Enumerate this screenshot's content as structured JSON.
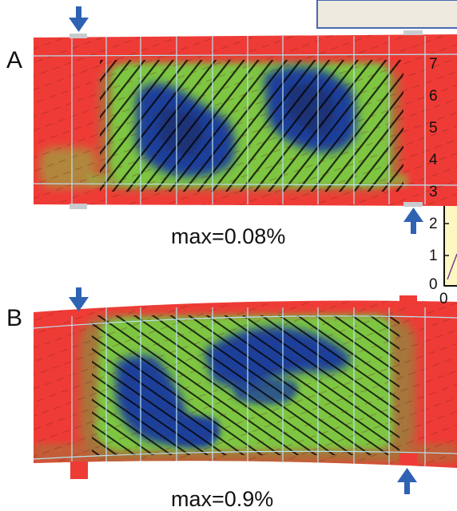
{
  "panels": [
    {
      "label": "A",
      "caption": "max=0.08%"
    },
    {
      "label": "B",
      "caption": "max=0.9%"
    }
  ],
  "inset_axis": {
    "y_ticks": [
      "0",
      "1",
      "2",
      "3",
      "4",
      "5",
      "6",
      "7"
    ],
    "x_tick": "0"
  },
  "colors": {
    "high_strain": "#ef3b36",
    "medium_strain": "#7ec642",
    "low_strain": "#1c3f9a",
    "transition": "#a5763a",
    "load_arrow": "#2f62b3",
    "mesh_line": "#b9e3f1",
    "inset_background": "#fff7c2"
  },
  "icons": {
    "load_arrow": "arrow-icon"
  }
}
